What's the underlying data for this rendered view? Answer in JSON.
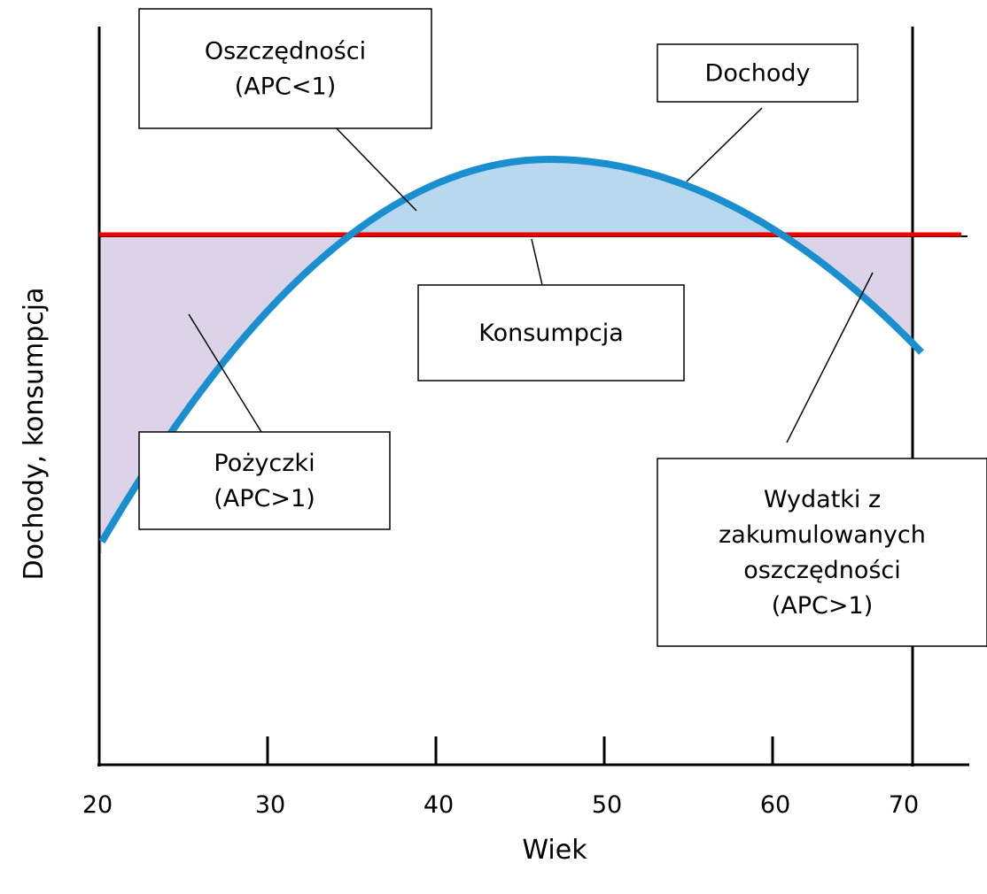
{
  "axes": {
    "x_label": "Wiek",
    "y_label": "Dochody, konsumpcja",
    "x_ticks": [
      20,
      30,
      40,
      50,
      60,
      70
    ]
  },
  "boxes": {
    "savings": {
      "lines": [
        "Oszczędności",
        "(APC<1)"
      ]
    },
    "income": {
      "lines": [
        "Dochody"
      ]
    },
    "consumption": {
      "lines": [
        "Konsumpcja"
      ]
    },
    "loans": {
      "lines": [
        "Pożyczki",
        "(APC>1)"
      ]
    },
    "dissaving": {
      "lines": [
        "Wydatki z",
        "zakumulowanych",
        "oszczędności",
        "(APC>1)"
      ]
    }
  }
}
